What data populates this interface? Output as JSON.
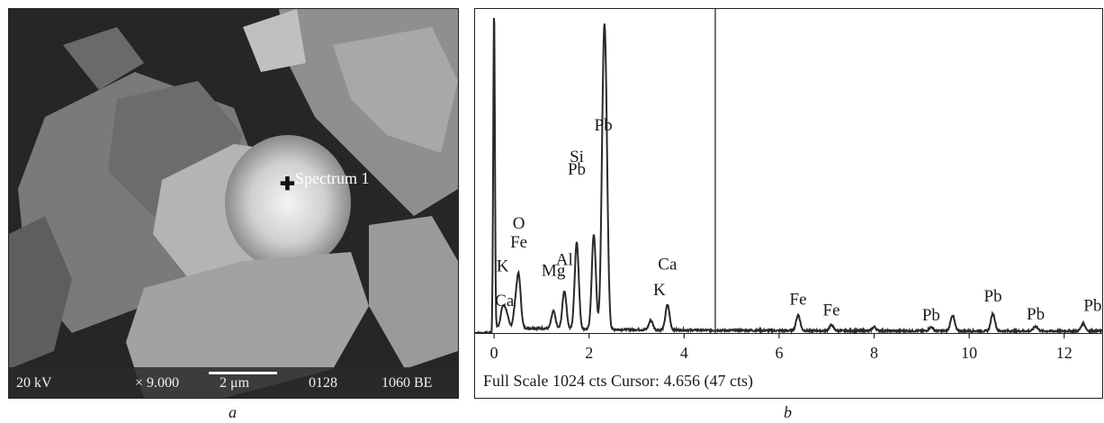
{
  "panel_a": {
    "label": "a",
    "marker_label": "Spectrum 1",
    "voltage": "20 kV",
    "magnification": "× 9.000",
    "scale": "2 μm",
    "image_no": "0128",
    "mode": "1060 BE"
  },
  "panel_b": {
    "label": "b",
    "status": "Full Scale 1024 cts Cursor: 4.656 (47 cts)",
    "chart_data": {
      "type": "line",
      "xlabel": "",
      "ylabel": "",
      "xlim": [
        -0.4,
        12.8
      ],
      "ylim": [
        0,
        1024
      ],
      "x_ticks": [
        0,
        2,
        4,
        6,
        8,
        10,
        12
      ],
      "cursor_x": 4.656,
      "peaks": [
        {
          "x": 0.0,
          "y": 1024
        },
        {
          "x": 0.18,
          "y": 60
        },
        {
          "x": 0.26,
          "y": 45
        },
        {
          "x": 0.45,
          "y": 60
        },
        {
          "x": 0.52,
          "y": 155
        },
        {
          "x": 1.25,
          "y": 55
        },
        {
          "x": 1.48,
          "y": 120
        },
        {
          "x": 1.74,
          "y": 275
        },
        {
          "x": 2.1,
          "y": 300
        },
        {
          "x": 2.3,
          "y": 590
        },
        {
          "x": 2.35,
          "y": 560
        },
        {
          "x": 3.3,
          "y": 30
        },
        {
          "x": 3.65,
          "y": 80
        },
        {
          "x": 6.4,
          "y": 50
        },
        {
          "x": 7.1,
          "y": 18
        },
        {
          "x": 8.0,
          "y": 12
        },
        {
          "x": 9.2,
          "y": 12
        },
        {
          "x": 9.65,
          "y": 50
        },
        {
          "x": 10.5,
          "y": 55
        },
        {
          "x": 11.4,
          "y": 15
        },
        {
          "x": 12.4,
          "y": 25
        }
      ],
      "annotations": [
        {
          "text": "Pb",
          "x": 2.3,
          "y": 640
        },
        {
          "text": "Si",
          "x": 1.74,
          "y": 540
        },
        {
          "text": "Pb",
          "x": 1.74,
          "y": 500
        },
        {
          "text": "O",
          "x": 0.52,
          "y": 330
        },
        {
          "text": "Fe",
          "x": 0.52,
          "y": 270
        },
        {
          "text": "Al",
          "x": 1.48,
          "y": 215
        },
        {
          "text": "Mg",
          "x": 1.25,
          "y": 180
        },
        {
          "text": "K",
          "x": 0.18,
          "y": 195
        },
        {
          "text": "Ca",
          "x": 0.22,
          "y": 85
        },
        {
          "text": "Ca",
          "x": 3.65,
          "y": 200
        },
        {
          "text": "K",
          "x": 3.48,
          "y": 120
        },
        {
          "text": "Fe",
          "x": 6.4,
          "y": 90
        },
        {
          "text": "Fe",
          "x": 7.1,
          "y": 55
        },
        {
          "text": "Pb",
          "x": 9.2,
          "y": 40
        },
        {
          "text": "Pb",
          "x": 10.5,
          "y": 100
        },
        {
          "text": "Pb",
          "x": 11.4,
          "y": 42
        },
        {
          "text": "Pb",
          "x": 12.6,
          "y": 70
        }
      ]
    }
  }
}
